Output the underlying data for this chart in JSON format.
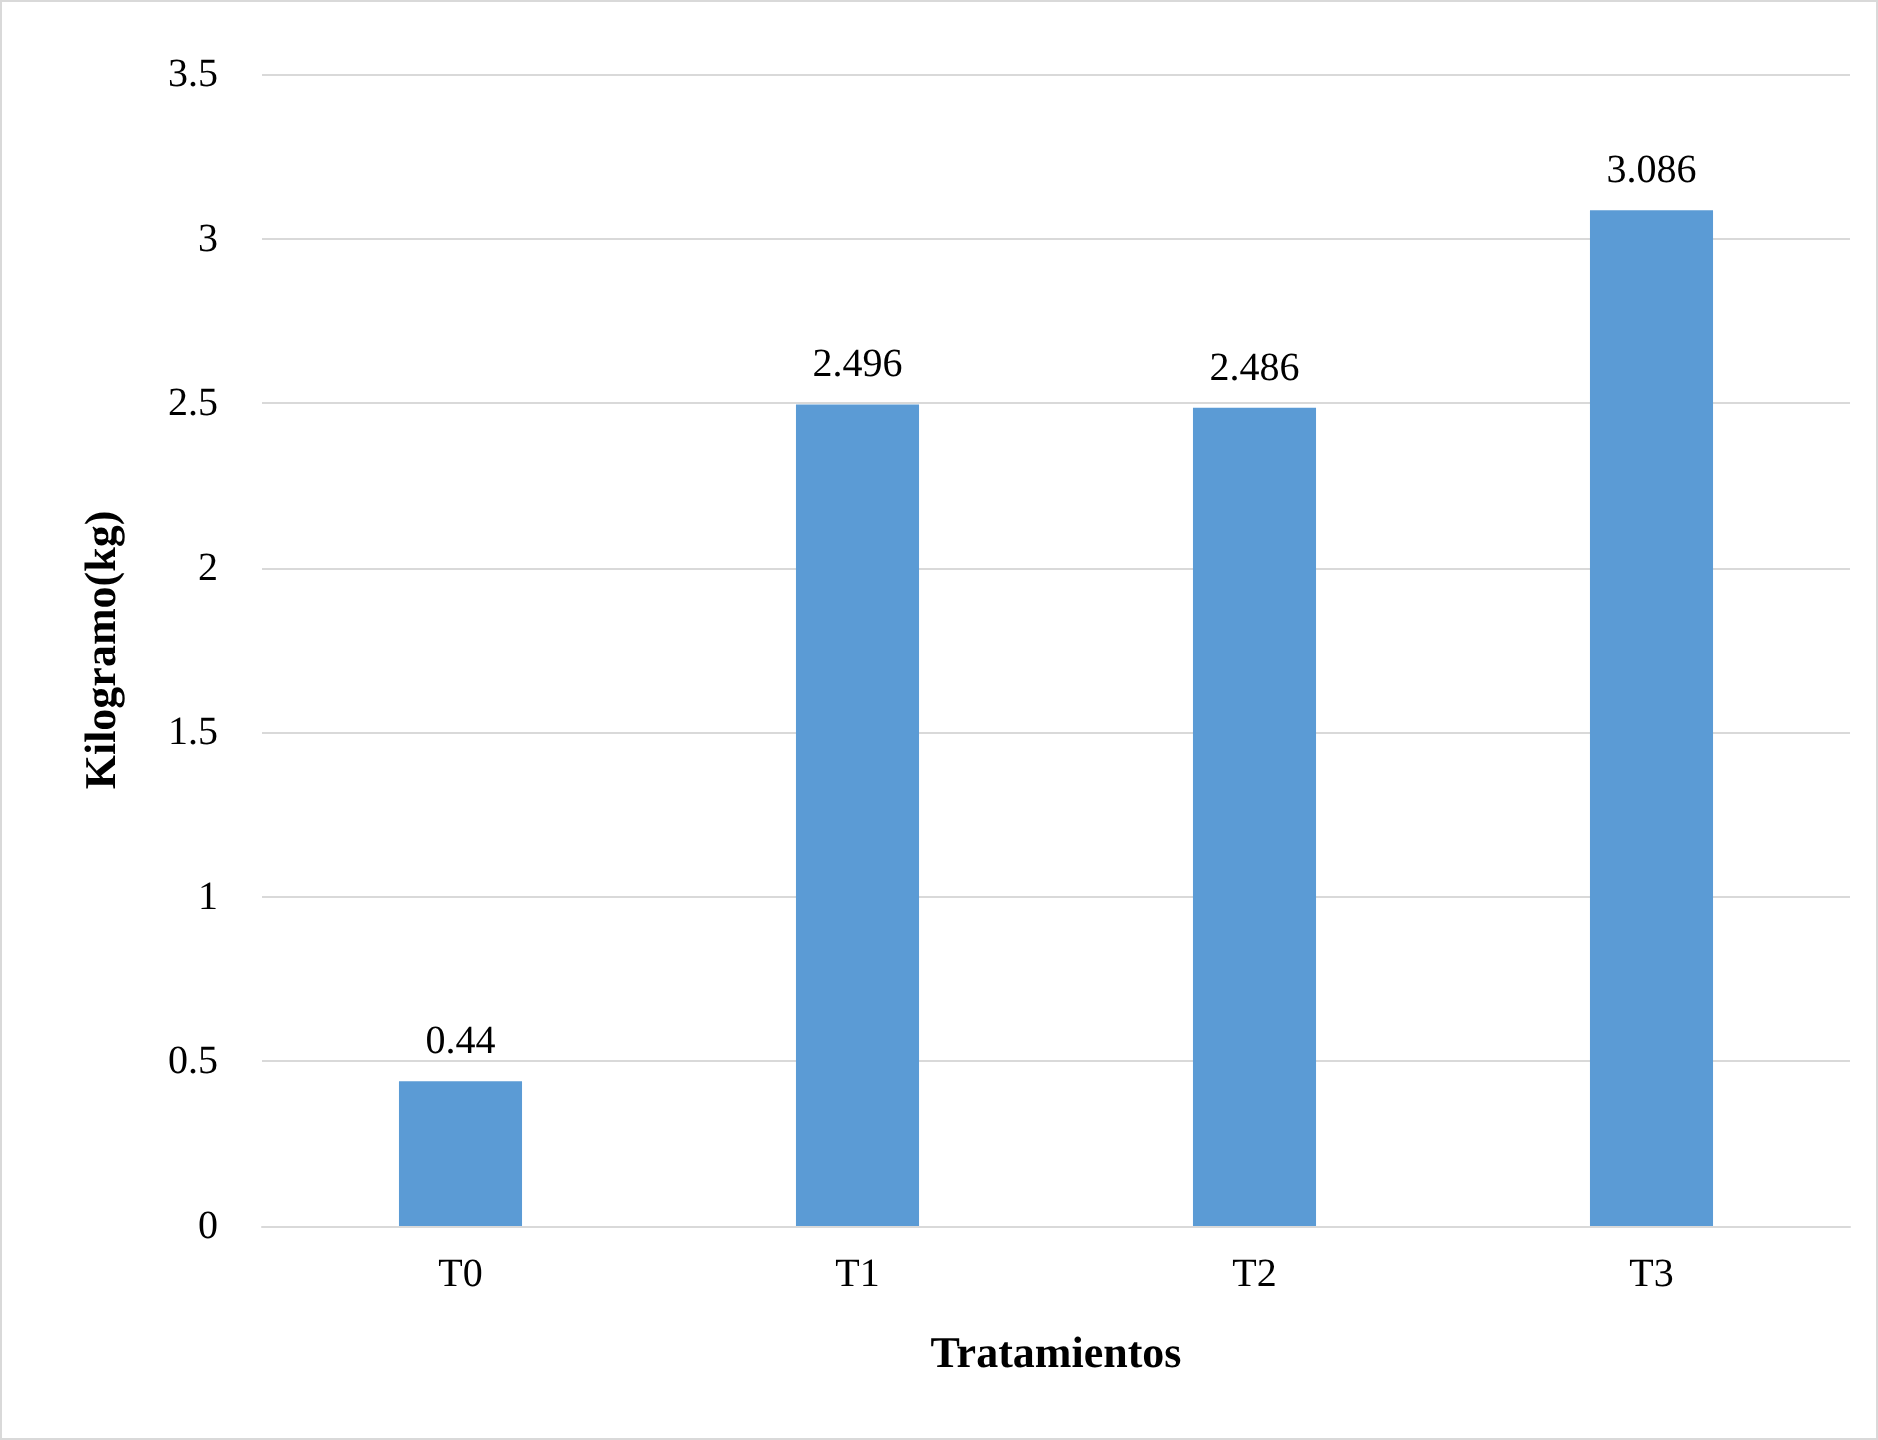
{
  "chart_data": {
    "type": "bar",
    "xlabel": "Tratamientos",
    "ylabel": "Kilogramo(kg)",
    "categories": [
      "T0",
      "T1",
      "T2",
      "T3"
    ],
    "values": [
      0.44,
      2.496,
      2.486,
      3.086
    ],
    "color": "#5b9bd5",
    "ylim": [
      0,
      3.5
    ],
    "yticks": [
      0,
      0.5,
      1,
      1.5,
      2,
      2.5,
      3,
      3.5
    ],
    "grid": "y",
    "data_labels": true
  }
}
